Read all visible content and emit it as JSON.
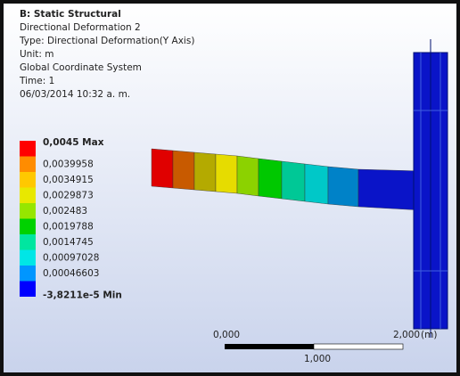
{
  "header": {
    "title": "B: Static Structural",
    "lines": [
      "Directional Deformation 2",
      "Type: Directional Deformation(Y Axis)",
      "Unit: m",
      "Global Coordinate System",
      "Time: 1",
      "06/03/2014 10:32 a. m."
    ]
  },
  "legend": [
    {
      "label": "0,0045 Max",
      "color": "#ff0000"
    },
    {
      "label": "0,0039958",
      "color": "#ff8c00"
    },
    {
      "label": "0,0034915",
      "color": "#ffc800"
    },
    {
      "label": "0,0029873",
      "color": "#e8e800"
    },
    {
      "label": "0,002483",
      "color": "#96e600"
    },
    {
      "label": "0,0019788",
      "color": "#00d200"
    },
    {
      "label": "0,0014745",
      "color": "#00e6a0"
    },
    {
      "label": "0,00097028",
      "color": "#00e6e6"
    },
    {
      "label": "0,00046603",
      "color": "#0096ff"
    },
    {
      "label": "-3,8211e-5 Min",
      "color": "#0000ff"
    }
  ],
  "scale": {
    "start": "0,000",
    "end": "2,000",
    "unit": "(m)",
    "middle": "1,000"
  }
}
